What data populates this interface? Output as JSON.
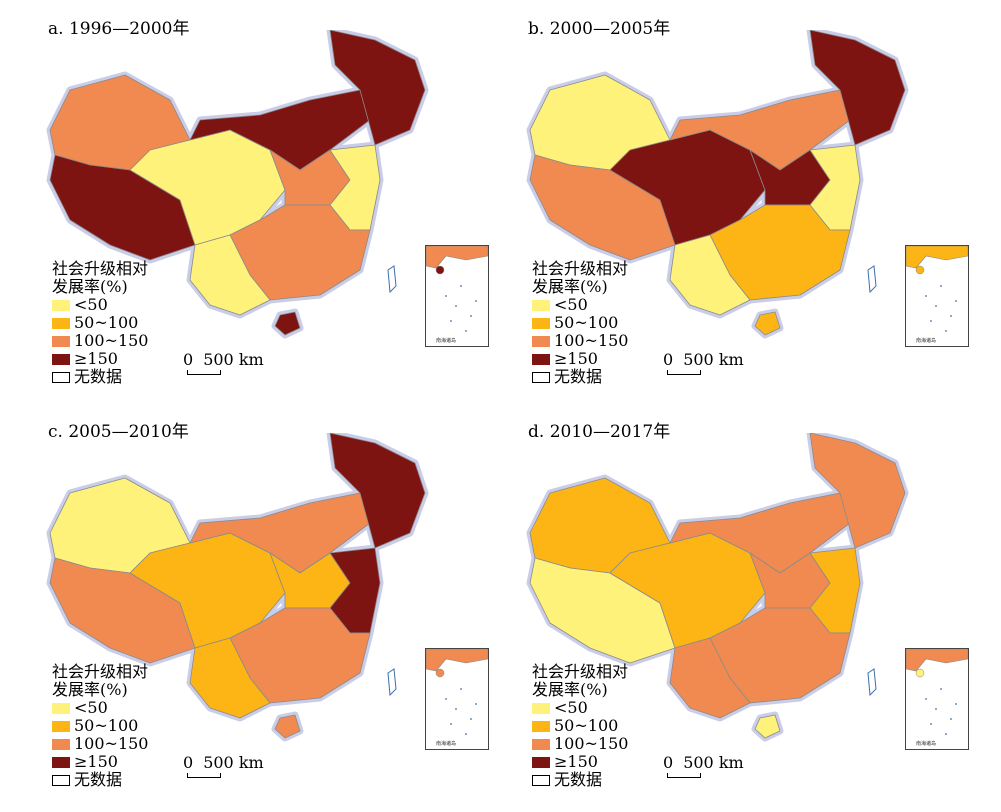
{
  "legend": {
    "title_line1": "社会升级相对",
    "title_line2": "发展率(%)",
    "items": [
      {
        "label": "<50",
        "color": "#FFF27A"
      },
      {
        "label": "50~100",
        "color": "#FCB514"
      },
      {
        "label": "100~150",
        "color": "#F08A50"
      },
      {
        "label": "≥150",
        "color": "#7E1411"
      },
      {
        "label": "无数据",
        "color": "#FFFFFF"
      }
    ]
  },
  "scale": {
    "zero": "0",
    "label": "500 km"
  },
  "inset_label": "南海诸岛",
  "panels": [
    {
      "title": "a. 1996—2000年",
      "zones": {
        "nw": "#F08A50",
        "tibet": "#7E1411",
        "west": "#FFF27A",
        "north": "#7E1411",
        "ne": "#7E1411",
        "central": "#F08A50",
        "south": "#F08A50",
        "sw": "#FFF27A",
        "east": "#FFF27A",
        "hainan": "#7E1411"
      }
    },
    {
      "title": "b. 2000—2005年",
      "zones": {
        "nw": "#FFF27A",
        "tibet": "#F08A50",
        "west": "#7E1411",
        "north": "#F08A50",
        "ne": "#7E1411",
        "central": "#7E1411",
        "south": "#FCB514",
        "sw": "#FFF27A",
        "east": "#FFF27A",
        "hainan": "#FCB514"
      }
    },
    {
      "title": "c. 2005—2010年",
      "zones": {
        "nw": "#FFF27A",
        "tibet": "#F08A50",
        "west": "#FCB514",
        "north": "#F08A50",
        "ne": "#7E1411",
        "central": "#FCB514",
        "south": "#F08A50",
        "sw": "#FCB514",
        "east": "#7E1411",
        "hainan": "#F08A50"
      }
    },
    {
      "title": "d. 2010—2017年",
      "zones": {
        "nw": "#FCB514",
        "tibet": "#FFF27A",
        "west": "#FCB514",
        "north": "#F08A50",
        "ne": "#F08A50",
        "central": "#F08A50",
        "south": "#F08A50",
        "sw": "#F08A50",
        "east": "#FCB514",
        "hainan": "#FFF27A"
      }
    }
  ]
}
